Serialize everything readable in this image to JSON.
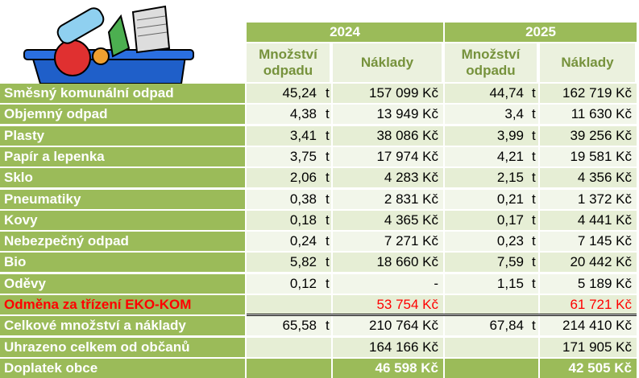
{
  "table": {
    "header": {
      "years": [
        "2024",
        "2025"
      ],
      "columns": [
        "Množství odpadu",
        "Náklady",
        "Množství odpadu",
        "Náklady"
      ]
    },
    "rows": [
      [
        "Směsný komunální odpad",
        "45,24",
        "t",
        "157 099 Kč",
        "44,74",
        "t",
        "162 719 Kč"
      ],
      [
        "Objemný odpad",
        "4,38",
        "t",
        "13 949 Kč",
        "3,4",
        "t",
        "11 630 Kč"
      ],
      [
        "Plasty",
        "3,41",
        "t",
        "38 086 Kč",
        "3,99",
        "t",
        "39 256 Kč"
      ],
      [
        "Papír a lepenka",
        "3,75",
        "t",
        "17 974 Kč",
        "4,21",
        "t",
        "19 581 Kč"
      ],
      [
        "Sklo",
        "2,06",
        "t",
        "4 283 Kč",
        "2,15",
        "t",
        "4 356 Kč"
      ],
      [
        "Pneumatiky",
        "0,38",
        "t",
        "2 831 Kč",
        "0,21",
        "t",
        "1 372 Kč"
      ],
      [
        "Kovy",
        "0,18",
        "t",
        "4 365 Kč",
        "0,17",
        "t",
        "4 441 Kč"
      ],
      [
        "Nebezpečný odpad",
        "0,24",
        "t",
        "7 271 Kč",
        "0,23",
        "t",
        "7 145 Kč"
      ],
      [
        "Bio",
        "5,82",
        "t",
        "18 660 Kč",
        "7,59",
        "t",
        "20 442 Kč"
      ],
      [
        "Oděvy",
        "0,12",
        "t",
        "-",
        "1,15",
        "t",
        "5 189 Kč"
      ],
      [
        "Odměna za třízení EKO-KOM",
        null,
        null,
        "53 754 Kč",
        null,
        null,
        "61 721 Kč"
      ],
      [
        "Celkové množství a náklady",
        "65,58",
        "t",
        "210 764 Kč",
        "67,84",
        "t",
        "214 410 Kč"
      ],
      [
        "Uhrazeno celkem od občanů",
        null,
        null,
        "164 166 Kč",
        null,
        null,
        "171 905 Kč"
      ],
      [
        "Doplatek obce",
        null,
        null,
        "46 598 Kč",
        null,
        null,
        "42 505 Kč"
      ]
    ]
  }
}
